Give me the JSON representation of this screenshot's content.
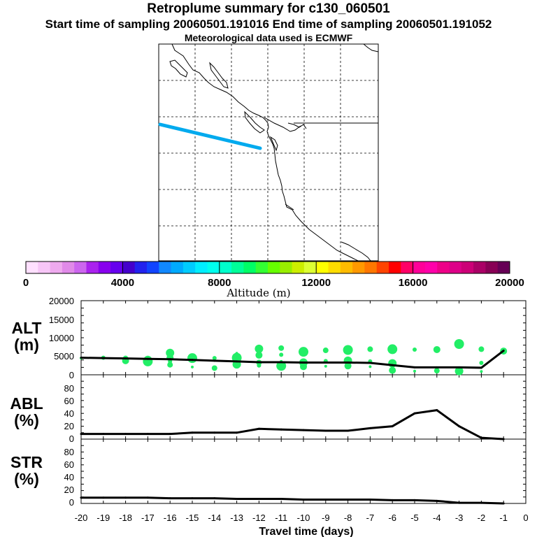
{
  "header": {
    "title": "Retroplume summary for c130_060501",
    "times": "Start time of sampling 20060501.191016     End time of sampling 20060501.191052",
    "met": "Meteorological data used is ECMWF"
  },
  "colorbar": {
    "label": "Altitude (m)",
    "ticks": [
      "0",
      "4000",
      "8000",
      "12000",
      "16000",
      "20000"
    ],
    "colors": [
      "#ffe0ff",
      "#f7c6f7",
      "#eeaaee",
      "#e08ae8",
      "#cc66ee",
      "#aa22ee",
      "#8800ee",
      "#6600ee",
      "#4400cc",
      "#2222ee",
      "#1144ff",
      "#1188ff",
      "#00aaff",
      "#00ccff",
      "#00eeff",
      "#00ffee",
      "#00ffcc",
      "#00ff99",
      "#00ff66",
      "#33ff33",
      "#66ff00",
      "#99ee00",
      "#ccee00",
      "#ddff33",
      "#ffff00",
      "#ffdd00",
      "#ffbb00",
      "#ff9900",
      "#ff7700",
      "#ff4400",
      "#ff0000",
      "#ff0066",
      "#ff0099",
      "#ff00aa",
      "#ee0088",
      "#dd0088",
      "#cc0077",
      "#aa0066",
      "#880055",
      "#660055"
    ]
  },
  "map": {
    "track_color": "#00aaee"
  },
  "panels": {
    "alt": {
      "label1": "ALT",
      "label2": "(m)",
      "yticks": [
        "20000",
        "15000",
        "10000",
        "5000",
        "0"
      ]
    },
    "abl": {
      "label1": "ABL",
      "label2": "(%)",
      "yticks": [
        "80",
        "60",
        "40",
        "20",
        "0"
      ]
    },
    "str": {
      "label1": "STR",
      "label2": "(%)",
      "yticks": [
        "80",
        "60",
        "40",
        "20",
        "0"
      ]
    }
  },
  "chart_data": [
    {
      "type": "line",
      "title": "ALT",
      "xlabel": "Travel time (days)",
      "ylabel": "ALT (m)",
      "x": [
        -20,
        -19,
        -18,
        -17,
        -16,
        -15,
        -14,
        -13,
        -12,
        -11,
        -10,
        -9,
        -8,
        -7,
        -6,
        -5,
        -4,
        -3,
        -2,
        -1
      ],
      "values": [
        4600,
        4500,
        4400,
        4300,
        4200,
        4000,
        3800,
        3600,
        3400,
        3400,
        3300,
        3300,
        3300,
        3200,
        2600,
        2000,
        2000,
        2000,
        1900,
        6500
      ],
      "xlim": [
        -20,
        0
      ],
      "ylim": [
        0,
        20000
      ],
      "scatter_color": "#22ee66",
      "scatter": [
        [
          -20,
          4500
        ],
        [
          -19,
          4600
        ],
        [
          -18,
          4400
        ],
        [
          -18,
          3800
        ],
        [
          -17,
          4000
        ],
        [
          -17,
          3600
        ],
        [
          -17,
          4700
        ],
        [
          -16,
          3600
        ],
        [
          -16,
          2700
        ],
        [
          -16,
          4600
        ],
        [
          -16,
          5900
        ],
        [
          -15,
          4500
        ],
        [
          -15,
          2100
        ],
        [
          -14,
          4500
        ],
        [
          -14,
          1800
        ],
        [
          -13,
          3500
        ],
        [
          -13,
          2800
        ],
        [
          -13,
          4600
        ],
        [
          -13,
          5800
        ],
        [
          -12,
          2500
        ],
        [
          -12,
          3300
        ],
        [
          -12,
          5300
        ],
        [
          -12,
          7000
        ],
        [
          -11,
          2400
        ],
        [
          -11,
          3600
        ],
        [
          -11,
          5400
        ],
        [
          -11,
          7200
        ],
        [
          -10,
          2200
        ],
        [
          -10,
          3300
        ],
        [
          -10,
          6200
        ],
        [
          -9,
          2300
        ],
        [
          -9,
          3700
        ],
        [
          -9,
          6600
        ],
        [
          -8,
          2400
        ],
        [
          -8,
          3800
        ],
        [
          -8,
          6700
        ],
        [
          -7,
          2200
        ],
        [
          -7,
          3600
        ],
        [
          -7,
          6900
        ],
        [
          -6,
          1200
        ],
        [
          -6,
          3100
        ],
        [
          -6,
          6900
        ],
        [
          -5,
          1000
        ],
        [
          -5,
          6800
        ],
        [
          -4,
          1100
        ],
        [
          -4,
          6800
        ],
        [
          -3,
          1000
        ],
        [
          -3,
          8300
        ],
        [
          -2,
          900
        ],
        [
          -2,
          3200
        ],
        [
          -2,
          6900
        ],
        [
          -1,
          6400
        ]
      ]
    },
    {
      "type": "line",
      "title": "ABL",
      "ylabel": "ABL (%)",
      "x": [
        -20,
        -19,
        -18,
        -17,
        -16,
        -15,
        -14,
        -13,
        -12,
        -11,
        -10,
        -9,
        -8,
        -7,
        -6,
        -5,
        -4,
        -3,
        -2,
        -1
      ],
      "values": [
        8,
        8,
        8,
        8,
        8,
        10,
        10,
        10,
        16,
        15,
        14,
        13,
        13,
        17,
        20,
        40,
        45,
        20,
        2,
        0
      ],
      "xlim": [
        -20,
        0
      ],
      "ylim": [
        0,
        100
      ]
    },
    {
      "type": "line",
      "title": "STR",
      "ylabel": "STR (%)",
      "x": [
        -20,
        -19,
        -18,
        -17,
        -16,
        -15,
        -14,
        -13,
        -12,
        -11,
        -10,
        -9,
        -8,
        -7,
        -6,
        -5,
        -4,
        -3,
        -2,
        -1
      ],
      "values": [
        9,
        9,
        9,
        9,
        8,
        8,
        8,
        7,
        7,
        7,
        6,
        6,
        6,
        6,
        5,
        5,
        4,
        1,
        1,
        0
      ],
      "xlim": [
        -20,
        0
      ],
      "ylim": [
        0,
        100
      ]
    }
  ],
  "xaxis": {
    "ticks": [
      "-20",
      "-19",
      "-18",
      "-17",
      "-16",
      "-15",
      "-14",
      "-13",
      "-12",
      "-11",
      "-10",
      "-9",
      "-8",
      "-7",
      "-6",
      "-5",
      "-4",
      "-3",
      "-2",
      "-1",
      "0"
    ],
    "label": "Travel time (days)"
  }
}
